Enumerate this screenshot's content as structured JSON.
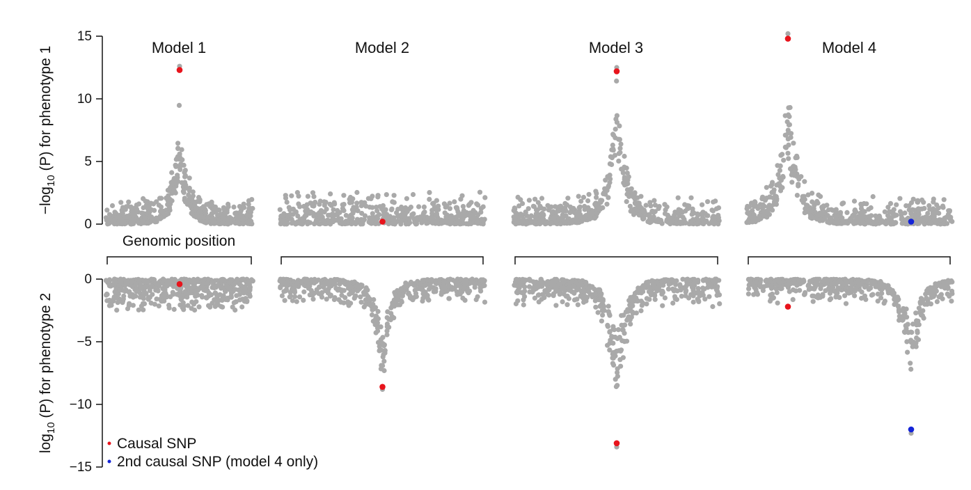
{
  "chart_data": {
    "type": "scatter",
    "grid": false,
    "legend_position": "bottom-left",
    "legend": [
      {
        "label": "Causal SNP",
        "color": "#e8141c"
      },
      {
        "label": "2nd causal SNP (model 4 only)",
        "color": "#1424d8"
      }
    ],
    "top_axis": {
      "label_pre": "−log",
      "label_sub": "10",
      "label_post": " (P) for phenotype 1",
      "ylim": [
        0,
        15
      ],
      "ticks": [
        "0",
        "5",
        "10",
        "15"
      ]
    },
    "bottom_axis": {
      "label_pre": "log",
      "label_sub": "10",
      "label_post": " (P) for phenotype 2",
      "ylim": [
        -15,
        0
      ],
      "ticks": [
        "0",
        "−5",
        "−10",
        "−15"
      ]
    },
    "xlabel": "Genomic position",
    "background_color": "#a9a9a9",
    "models": [
      {
        "title": "Model 1",
        "top": {
          "peak_position": 0.5,
          "peak_height": 8.8,
          "noise": 1.1,
          "max_grey": 12.6
        },
        "bottom": {
          "peak_position": 0.5,
          "peak_height": 0,
          "noise": 1.4,
          "max_grey": 0
        },
        "causal_snp": {
          "position": 0.5,
          "p1": 12.3,
          "p2": -0.4
        },
        "second_causal_snp": null
      },
      {
        "title": "Model 2",
        "top": {
          "peak_position": 0.5,
          "peak_height": 0,
          "noise": 1.4,
          "max_grey": 0
        },
        "bottom": {
          "peak_position": 0.5,
          "peak_height": 7.6,
          "noise": 1.0,
          "max_grey": 8.8
        },
        "causal_snp": {
          "position": 0.5,
          "p1": 0.2,
          "p2": -8.6
        },
        "second_causal_snp": null
      },
      {
        "title": "Model 3",
        "top": {
          "peak_position": 0.5,
          "peak_height": 9.8,
          "noise": 1.2,
          "max_grey": 12.5
        },
        "bottom": {
          "peak_position": 0.5,
          "peak_height": 9.8,
          "noise": 1.2,
          "max_grey": 13.4
        },
        "causal_snp": {
          "position": 0.5,
          "p1": 12.2,
          "p2": -13.1
        },
        "second_causal_snp": null
      },
      {
        "title": "Model 4",
        "top": {
          "peak_position": 0.2,
          "peak_height": 10.4,
          "noise": 1.2,
          "max_grey": 15.2
        },
        "bottom": {
          "peak_position": 0.8,
          "peak_height": 8.6,
          "noise": 1.0,
          "max_grey": 12.3
        },
        "causal_snp": {
          "position": 0.2,
          "p1": 14.8,
          "p2": -2.2
        },
        "second_causal_snp": {
          "position": 0.8,
          "p1": 0.2,
          "p2": -12.0
        }
      }
    ]
  }
}
